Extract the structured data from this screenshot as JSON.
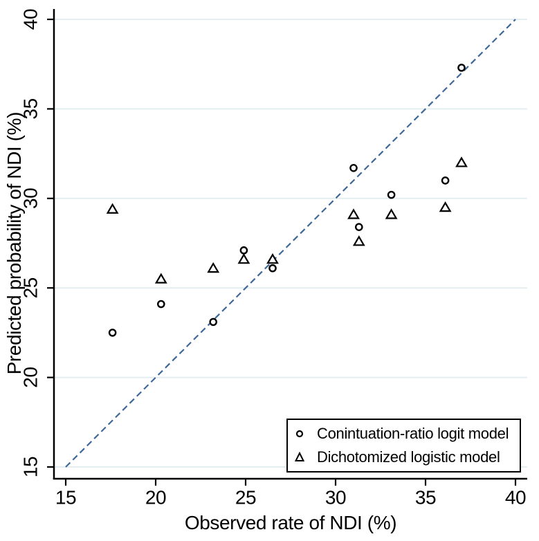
{
  "figure": {
    "background": "#ffffff"
  },
  "chart_data": {
    "type": "scatter",
    "title": "",
    "xlabel": "Observed rate of NDI (%)",
    "ylabel": "Predicted probability of NDI (%)",
    "xlim": [
      15,
      40
    ],
    "ylim": [
      15,
      40
    ],
    "x_ticks": [
      15,
      20,
      25,
      30,
      35,
      40
    ],
    "y_ticks": [
      15,
      20,
      25,
      30,
      35,
      40
    ],
    "grid": "horizontal-gridlines-only",
    "y_tick_labels_rotated": true,
    "colors": {
      "grid": "#e4eef1",
      "axis": "#000000",
      "marker": "#000000",
      "reference_line": "#3d6899",
      "background": "#ffffff",
      "legend_border": "#000000"
    },
    "reference_line": {
      "style": "dashed",
      "from": [
        15,
        15
      ],
      "to": [
        40,
        40
      ]
    },
    "series": [
      {
        "name": "Conintuation-ratio logit model",
        "marker": "circle",
        "points": [
          [
            17.6,
            22.5
          ],
          [
            20.3,
            24.1
          ],
          [
            23.2,
            23.1
          ],
          [
            24.9,
            27.1
          ],
          [
            26.5,
            26.1
          ],
          [
            31.0,
            31.7
          ],
          [
            31.3,
            28.4
          ],
          [
            33.1,
            30.2
          ],
          [
            36.1,
            31.0
          ],
          [
            37.0,
            37.3
          ]
        ]
      },
      {
        "name": "Dichotomized logistic model",
        "marker": "triangle",
        "points": [
          [
            17.6,
            29.4
          ],
          [
            20.3,
            25.5
          ],
          [
            23.2,
            26.1
          ],
          [
            24.9,
            26.6
          ],
          [
            26.5,
            26.6
          ],
          [
            31.0,
            29.1
          ],
          [
            31.3,
            27.6
          ],
          [
            33.1,
            29.1
          ],
          [
            36.1,
            29.5
          ],
          [
            37.0,
            32.0
          ]
        ]
      }
    ],
    "legend": {
      "position": "bottom-right-inside"
    }
  }
}
